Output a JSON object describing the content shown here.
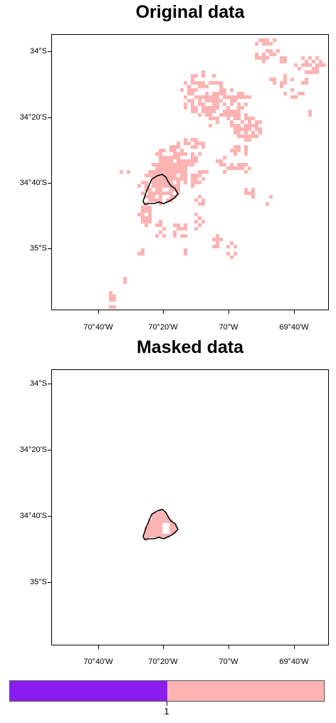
{
  "panels": [
    {
      "title": "Original data"
    },
    {
      "title": "Masked data"
    }
  ],
  "axes": {
    "lat_labels": [
      "34°S",
      "34°20'S",
      "34°40'S",
      "35°S"
    ],
    "lon_labels": [
      "70°40'W",
      "70°20'W",
      "70°W",
      "69°40'W"
    ]
  },
  "colors": {
    "pixel_fill": "#ffb3b3",
    "colorbar_left": "#8a1ef0",
    "colorbar_right": "#ffb3b3",
    "boundary": "#000000"
  },
  "colorbar": {
    "label": "1"
  }
}
